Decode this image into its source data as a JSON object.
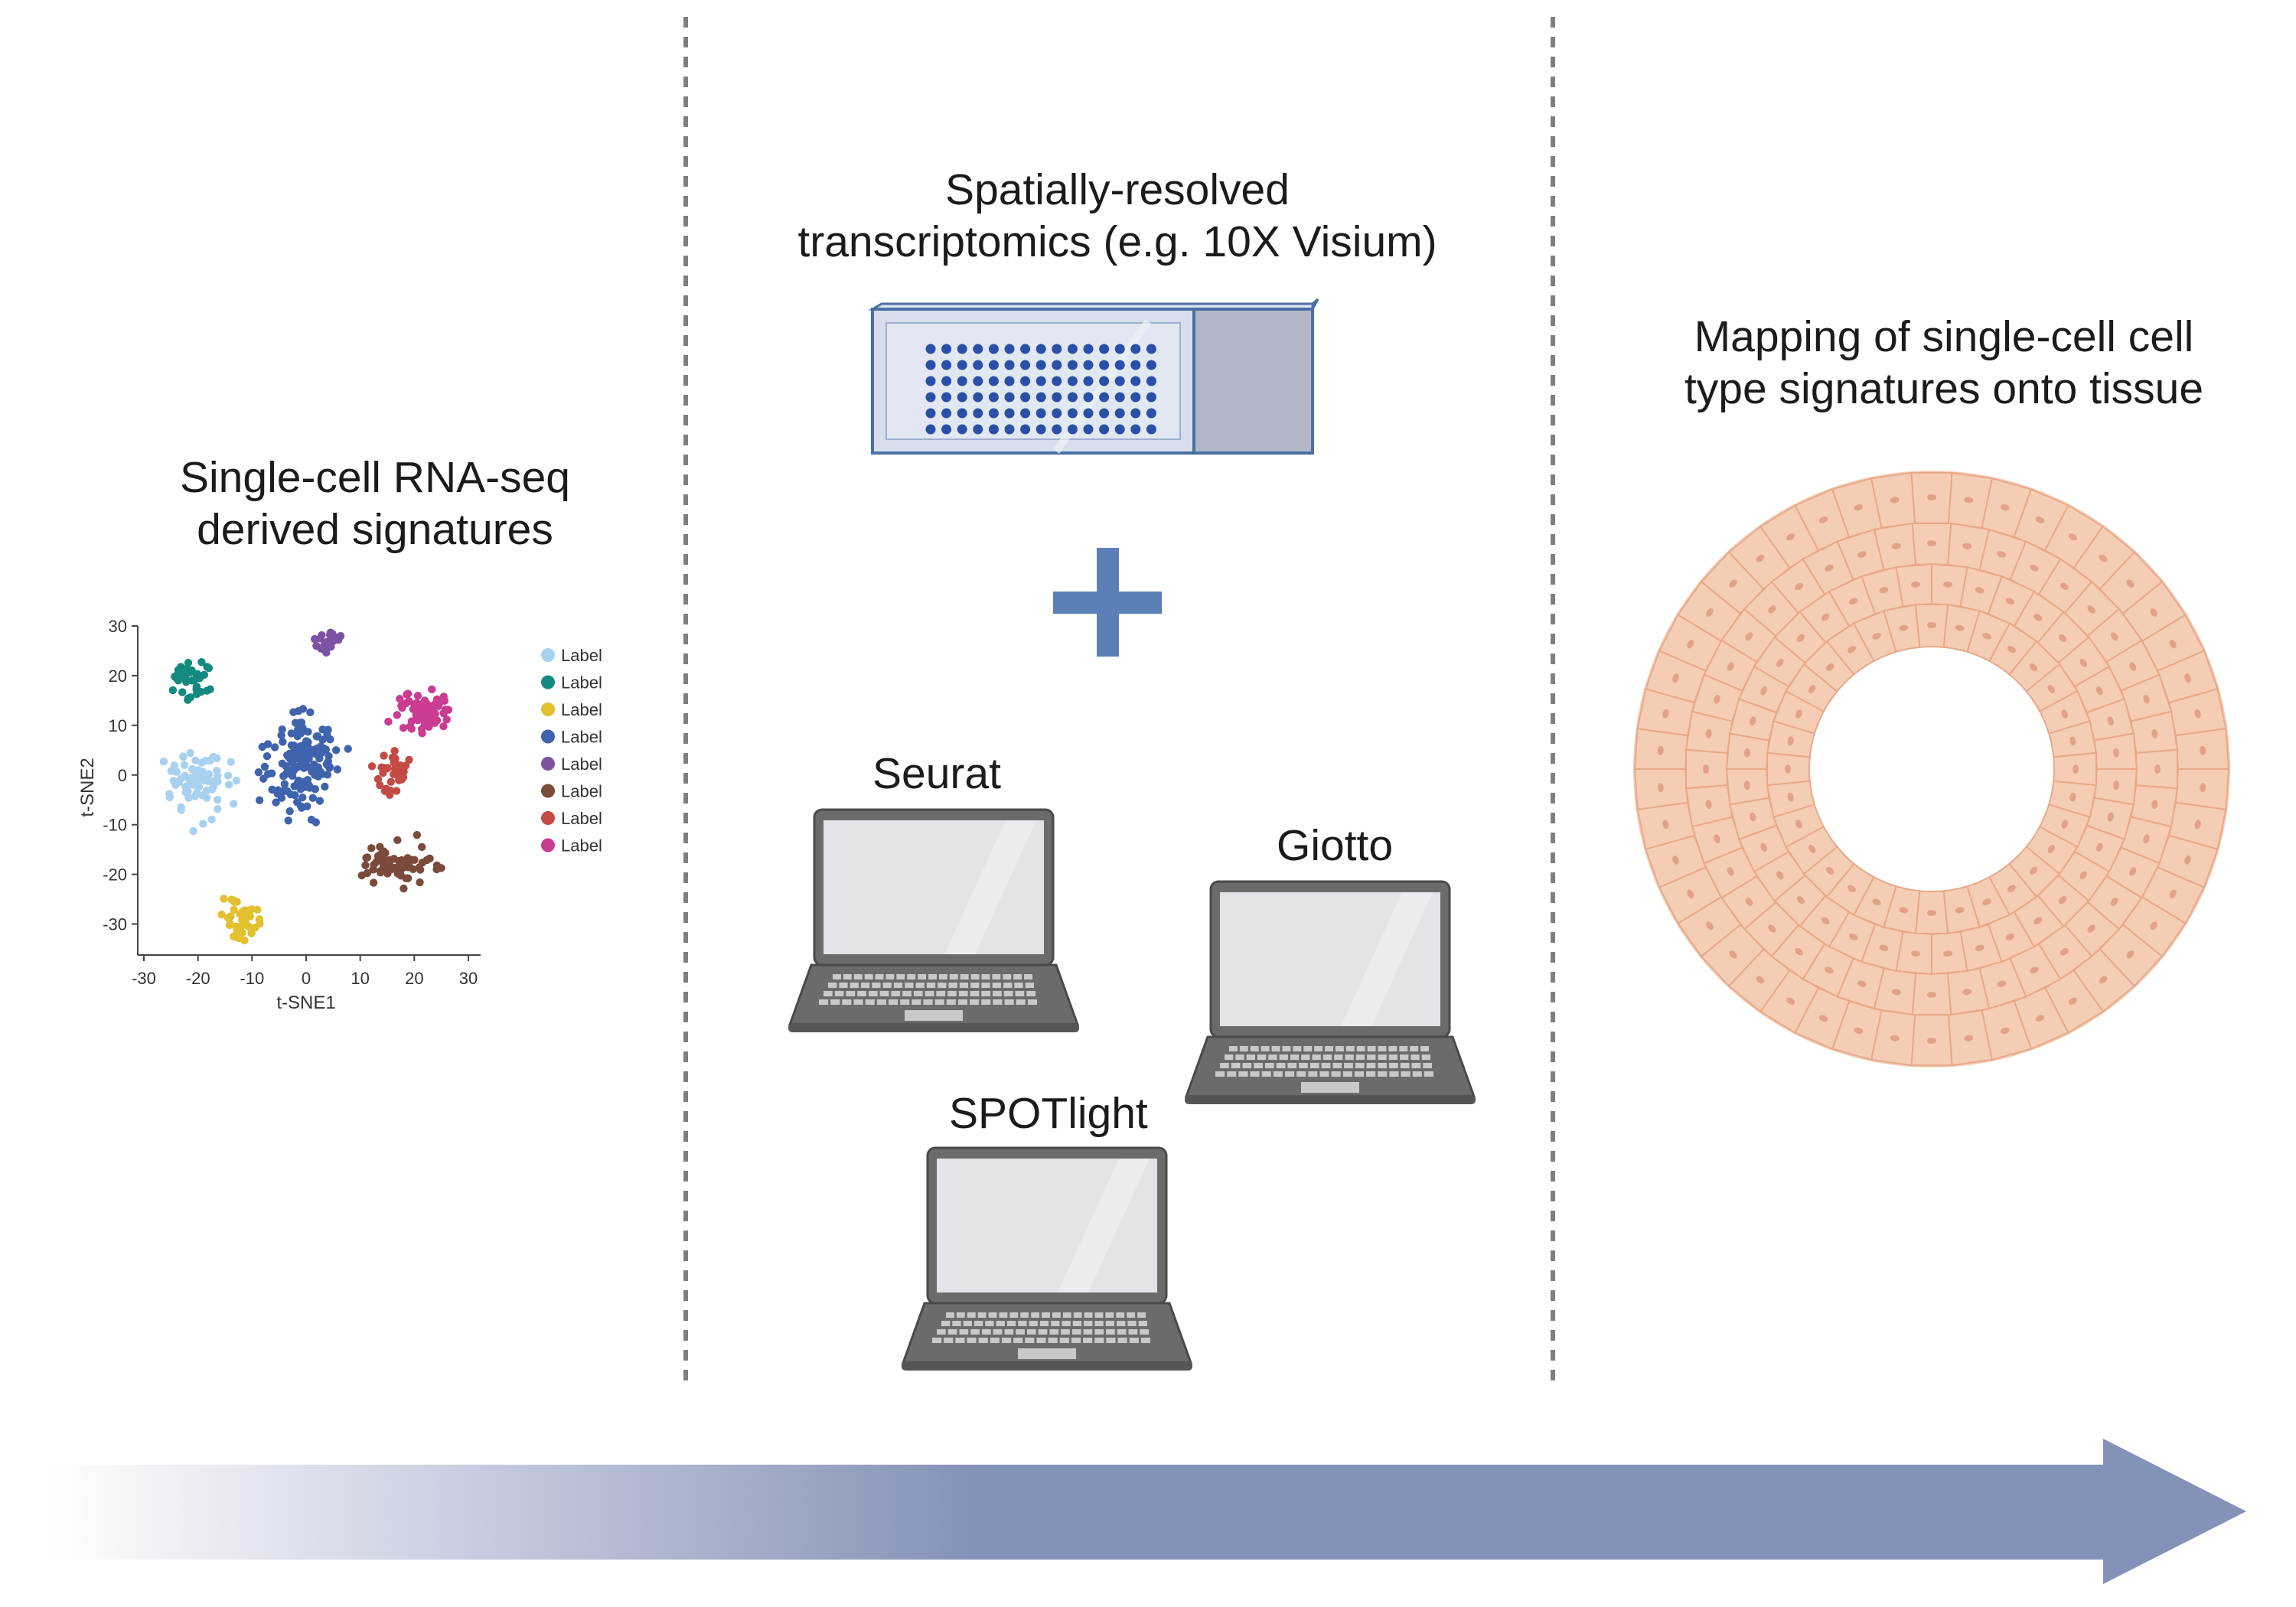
{
  "left_panel": {
    "title_lines": [
      "Single-cell RNA-seq",
      "derived signatures"
    ]
  },
  "middle_panel": {
    "title_lines": [
      "Spatially-resolved",
      "transcriptomics (e.g. 10X Visium)"
    ],
    "tools": [
      "Seurat",
      "Giotto",
      "SPOTlight"
    ]
  },
  "right_panel": {
    "title_lines": [
      "Mapping of single-cell cell",
      "type signatures onto tissue"
    ]
  },
  "colors": {
    "divider": "#7f7f7f",
    "arrow": "#8592b8",
    "slide_border": "#4a6fa5",
    "slide_spot": "#2a4fa8",
    "plus": "#5b80b8",
    "laptop_body": "#6b6b6b",
    "laptop_screen": "#e3e4e8",
    "tissue_fill": "#f5cdb4",
    "tissue_nucleus": "#e0a38a"
  },
  "chart_data": {
    "type": "scatter",
    "xlabel": "t-SNE1",
    "ylabel": "t-SNE2",
    "xlim": [
      -30,
      30
    ],
    "ylim": [
      -35,
      30
    ],
    "x_ticks": [
      -30,
      -20,
      -10,
      0,
      10,
      20,
      30
    ],
    "y_ticks": [
      30,
      20,
      10,
      0,
      -10,
      -20,
      -30
    ],
    "legend_position": "right",
    "series": [
      {
        "name": "Label",
        "color": "#a8d1ef",
        "center": [
          -20,
          -2
        ],
        "spread": [
          7,
          9
        ],
        "count": 70
      },
      {
        "name": "Label",
        "color": "#138a80",
        "center": [
          -21,
          19
        ],
        "spread": [
          5,
          5
        ],
        "count": 36
      },
      {
        "name": "Label",
        "color": "#e3c02f",
        "center": [
          -12,
          -29
        ],
        "spread": [
          5,
          5
        ],
        "count": 40
      },
      {
        "name": "Label",
        "color": "#3f63ad",
        "center": [
          -1,
          2
        ],
        "spread": [
          9,
          14
        ],
        "count": 150
      },
      {
        "name": "Label",
        "color": "#7c52a3",
        "center": [
          4,
          27
        ],
        "spread": [
          4,
          3
        ],
        "count": 22
      },
      {
        "name": "Label",
        "color": "#7b4a3b",
        "center": [
          17,
          -18
        ],
        "spread": [
          9,
          6
        ],
        "count": 70
      },
      {
        "name": "Label",
        "color": "#c44a44",
        "center": [
          16,
          1
        ],
        "spread": [
          4,
          7
        ],
        "count": 38
      },
      {
        "name": "Label",
        "color": "#c93c92",
        "center": [
          21,
          13
        ],
        "spread": [
          7,
          6
        ],
        "count": 70
      }
    ]
  }
}
